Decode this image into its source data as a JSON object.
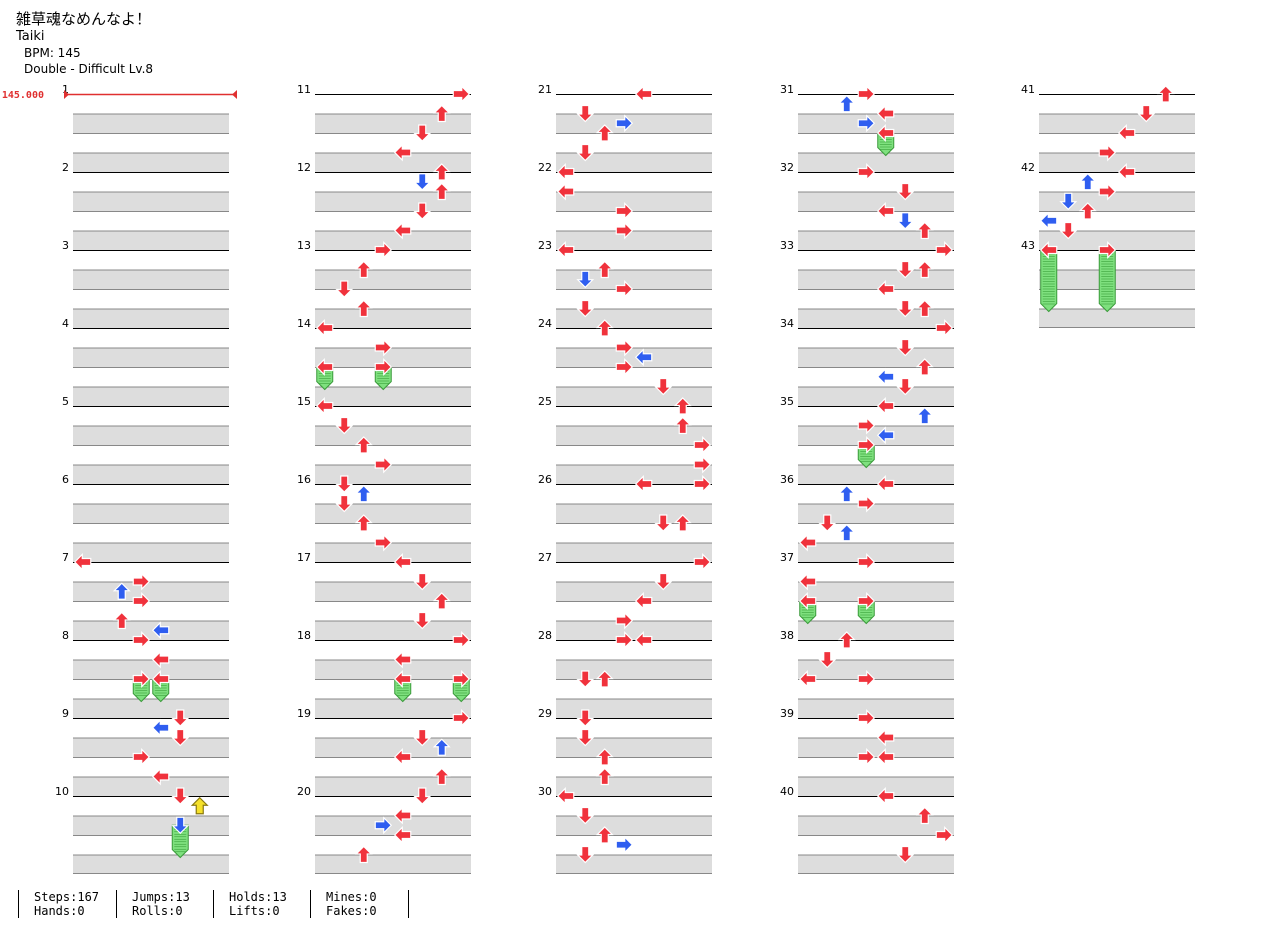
{
  "song": {
    "title": "雑草魂なめんなよ！",
    "artist": "Taiki",
    "bpm_line": "BPM: 145",
    "mode_line": "Double - Difficult  Lv.8"
  },
  "bpm_marker": "145.000",
  "columns": [
    {
      "first_measure": 1,
      "measures": [
        "1",
        "2",
        "3",
        "4",
        "5",
        "6",
        "7",
        "8",
        "9",
        "10"
      ]
    },
    {
      "first_measure": 11,
      "measures": [
        "11",
        "12",
        "13",
        "14",
        "15",
        "16",
        "17",
        "18",
        "19",
        "20"
      ]
    },
    {
      "first_measure": 21,
      "measures": [
        "21",
        "22",
        "23",
        "24",
        "25",
        "26",
        "27",
        "28",
        "29",
        "30"
      ]
    },
    {
      "first_measure": 31,
      "measures": [
        "31",
        "32",
        "33",
        "34",
        "35",
        "36",
        "37",
        "38",
        "39",
        "40"
      ]
    },
    {
      "first_measure": 41,
      "measures": [
        "41",
        "42",
        "43"
      ]
    }
  ],
  "notes": [
    {
      "m": 7,
      "b": 0,
      "l": 0,
      "c": "red"
    },
    {
      "m": 7,
      "b": 1,
      "l": 3,
      "c": "red"
    },
    {
      "m": 7,
      "b": 1.5,
      "l": 2,
      "c": "blue"
    },
    {
      "m": 7,
      "b": 2,
      "l": 3,
      "c": "red"
    },
    {
      "m": 7,
      "b": 3,
      "l": 2,
      "c": "red"
    },
    {
      "m": 7,
      "b": 3.5,
      "l": 4,
      "c": "blue"
    },
    {
      "m": 8,
      "b": 0,
      "l": 3,
      "c": "red"
    },
    {
      "m": 8,
      "b": 1,
      "l": 4,
      "c": "red"
    },
    {
      "m": 8,
      "b": 2,
      "l": 3,
      "c": "red",
      "hold": 1
    },
    {
      "m": 8,
      "b": 2,
      "l": 4,
      "c": "red",
      "hold": 1
    },
    {
      "m": 9,
      "b": 0,
      "l": 5,
      "c": "red"
    },
    {
      "m": 9,
      "b": 0.5,
      "l": 4,
      "c": "blue"
    },
    {
      "m": 9,
      "b": 1,
      "l": 5,
      "c": "red"
    },
    {
      "m": 9,
      "b": 2,
      "l": 3,
      "c": "red"
    },
    {
      "m": 9,
      "b": 3,
      "l": 4,
      "c": "red"
    },
    {
      "m": 10,
      "b": 0,
      "l": 5,
      "c": "red"
    },
    {
      "m": 10,
      "b": 0.5,
      "l": 6,
      "c": "yellow"
    },
    {
      "m": 10,
      "b": 1.5,
      "l": 5,
      "c": "blue",
      "hold": 1.5
    },
    {
      "m": 11,
      "b": 0,
      "l": 7,
      "c": "red"
    },
    {
      "m": 11,
      "b": 1,
      "l": 6,
      "c": "red"
    },
    {
      "m": 11,
      "b": 2,
      "l": 5,
      "c": "red"
    },
    {
      "m": 11,
      "b": 3,
      "l": 4,
      "c": "red"
    },
    {
      "m": 12,
      "b": 0,
      "l": 6,
      "c": "red"
    },
    {
      "m": 12,
      "b": 0.5,
      "l": 5,
      "c": "blue"
    },
    {
      "m": 12,
      "b": 1,
      "l": 6,
      "c": "red"
    },
    {
      "m": 12,
      "b": 2,
      "l": 5,
      "c": "red"
    },
    {
      "m": 12,
      "b": 3,
      "l": 4,
      "c": "red"
    },
    {
      "m": 13,
      "b": 0,
      "l": 3,
      "c": "red"
    },
    {
      "m": 13,
      "b": 1,
      "l": 2,
      "c": "red"
    },
    {
      "m": 13,
      "b": 2,
      "l": 1,
      "c": "red"
    },
    {
      "m": 13,
      "b": 3,
      "l": 2,
      "c": "red"
    },
    {
      "m": 14,
      "b": 0,
      "l": 0,
      "c": "red"
    },
    {
      "m": 14,
      "b": 1,
      "l": 3,
      "c": "red"
    },
    {
      "m": 14,
      "b": 2,
      "l": 0,
      "c": "red",
      "hold": 1
    },
    {
      "m": 14,
      "b": 2,
      "l": 3,
      "c": "red",
      "hold": 1
    },
    {
      "m": 15,
      "b": 0,
      "l": 0,
      "c": "red"
    },
    {
      "m": 15,
      "b": 1,
      "l": 1,
      "c": "red"
    },
    {
      "m": 15,
      "b": 2,
      "l": 2,
      "c": "red"
    },
    {
      "m": 15,
      "b": 3,
      "l": 3,
      "c": "red"
    },
    {
      "m": 16,
      "b": 0,
      "l": 1,
      "c": "red"
    },
    {
      "m": 16,
      "b": 0.5,
      "l": 2,
      "c": "blue"
    },
    {
      "m": 16,
      "b": 1,
      "l": 1,
      "c": "red"
    },
    {
      "m": 16,
      "b": 2,
      "l": 2,
      "c": "red"
    },
    {
      "m": 16,
      "b": 3,
      "l": 3,
      "c": "red"
    },
    {
      "m": 17,
      "b": 0,
      "l": 4,
      "c": "red"
    },
    {
      "m": 17,
      "b": 1,
      "l": 5,
      "c": "red"
    },
    {
      "m": 17,
      "b": 2,
      "l": 6,
      "c": "red"
    },
    {
      "m": 17,
      "b": 3,
      "l": 5,
      "c": "red"
    },
    {
      "m": 18,
      "b": 0,
      "l": 7,
      "c": "red"
    },
    {
      "m": 18,
      "b": 1,
      "l": 4,
      "c": "red"
    },
    {
      "m": 18,
      "b": 2,
      "l": 4,
      "c": "red",
      "hold": 1
    },
    {
      "m": 18,
      "b": 2,
      "l": 7,
      "c": "red",
      "hold": 1
    },
    {
      "m": 19,
      "b": 0,
      "l": 7,
      "c": "red"
    },
    {
      "m": 19,
      "b": 1,
      "l": 5,
      "c": "red"
    },
    {
      "m": 19,
      "b": 1.5,
      "l": 6,
      "c": "blue"
    },
    {
      "m": 19,
      "b": 2,
      "l": 4,
      "c": "red"
    },
    {
      "m": 19,
      "b": 3,
      "l": 6,
      "c": "red"
    },
    {
      "m": 20,
      "b": 0,
      "l": 5,
      "c": "red"
    },
    {
      "m": 20,
      "b": 1,
      "l": 4,
      "c": "red"
    },
    {
      "m": 20,
      "b": 1.5,
      "l": 3,
      "c": "blue"
    },
    {
      "m": 20,
      "b": 2,
      "l": 4,
      "c": "red"
    },
    {
      "m": 20,
      "b": 3,
      "l": 2,
      "c": "red"
    },
    {
      "m": 21,
      "b": 0,
      "l": 4,
      "c": "red"
    },
    {
      "m": 21,
      "b": 1,
      "l": 1,
      "c": "red"
    },
    {
      "m": 21,
      "b": 1.5,
      "l": 3,
      "c": "blue"
    },
    {
      "m": 21,
      "b": 2,
      "l": 2,
      "c": "red"
    },
    {
      "m": 21,
      "b": 3,
      "l": 1,
      "c": "red"
    },
    {
      "m": 22,
      "b": 0,
      "l": 0,
      "c": "red"
    },
    {
      "m": 22,
      "b": 1,
      "l": 0,
      "c": "red"
    },
    {
      "m": 22,
      "b": 2,
      "l": 3,
      "c": "red"
    },
    {
      "m": 22,
      "b": 3,
      "l": 3,
      "c": "red"
    },
    {
      "m": 23,
      "b": 0,
      "l": 0,
      "c": "red"
    },
    {
      "m": 23,
      "b": 1,
      "l": 2,
      "c": "red"
    },
    {
      "m": 23,
      "b": 1.5,
      "l": 1,
      "c": "blue"
    },
    {
      "m": 23,
      "b": 2,
      "l": 3,
      "c": "red"
    },
    {
      "m": 23,
      "b": 3,
      "l": 1,
      "c": "red"
    },
    {
      "m": 24,
      "b": 0,
      "l": 2,
      "c": "red"
    },
    {
      "m": 24,
      "b": 1,
      "l": 3,
      "c": "red"
    },
    {
      "m": 24,
      "b": 1.5,
      "l": 4,
      "c": "blue"
    },
    {
      "m": 24,
      "b": 2,
      "l": 3,
      "c": "red"
    },
    {
      "m": 24,
      "b": 3,
      "l": 5,
      "c": "red"
    },
    {
      "m": 25,
      "b": 0,
      "l": 6,
      "c": "red"
    },
    {
      "m": 25,
      "b": 1,
      "l": 6,
      "c": "red"
    },
    {
      "m": 25,
      "b": 2,
      "l": 7,
      "c": "red"
    },
    {
      "m": 25,
      "b": 3,
      "l": 7,
      "c": "red"
    },
    {
      "m": 26,
      "b": 0,
      "l": 4,
      "c": "red"
    },
    {
      "m": 26,
      "b": 0,
      "l": 7,
      "c": "red"
    },
    {
      "m": 26,
      "b": 2,
      "l": 5,
      "c": "red"
    },
    {
      "m": 26,
      "b": 2,
      "l": 6,
      "c": "red"
    },
    {
      "m": 27,
      "b": 0,
      "l": 7,
      "c": "red"
    },
    {
      "m": 27,
      "b": 1,
      "l": 5,
      "c": "red"
    },
    {
      "m": 27,
      "b": 2,
      "l": 4,
      "c": "red"
    },
    {
      "m": 27,
      "b": 3,
      "l": 3,
      "c": "red"
    },
    {
      "m": 28,
      "b": 0,
      "l": 3,
      "c": "red"
    },
    {
      "m": 28,
      "b": 0,
      "l": 4,
      "c": "red"
    },
    {
      "m": 28,
      "b": 2,
      "l": 1,
      "c": "red"
    },
    {
      "m": 28,
      "b": 2,
      "l": 2,
      "c": "red"
    },
    {
      "m": 29,
      "b": 0,
      "l": 1,
      "c": "red"
    },
    {
      "m": 29,
      "b": 1,
      "l": 1,
      "c": "red"
    },
    {
      "m": 29,
      "b": 2,
      "l": 2,
      "c": "red"
    },
    {
      "m": 29,
      "b": 3,
      "l": 2,
      "c": "red"
    },
    {
      "m": 30,
      "b": 0,
      "l": 0,
      "c": "red"
    },
    {
      "m": 30,
      "b": 1,
      "l": 1,
      "c": "red"
    },
    {
      "m": 30,
      "b": 2,
      "l": 2,
      "c": "red"
    },
    {
      "m": 30,
      "b": 2.5,
      "l": 3,
      "c": "blue"
    },
    {
      "m": 30,
      "b": 3,
      "l": 1,
      "c": "red"
    },
    {
      "m": 31,
      "b": 0,
      "l": 3,
      "c": "red"
    },
    {
      "m": 31,
      "b": 0.5,
      "l": 2,
      "c": "blue"
    },
    {
      "m": 31,
      "b": 1,
      "l": 4,
      "c": "red"
    },
    {
      "m": 31,
      "b": 1.5,
      "l": 3,
      "c": "blue"
    },
    {
      "m": 31,
      "b": 2,
      "l": 4,
      "c": "red",
      "hold": 1
    },
    {
      "m": 32,
      "b": 0,
      "l": 3,
      "c": "red"
    },
    {
      "m": 32,
      "b": 1,
      "l": 5,
      "c": "red"
    },
    {
      "m": 32,
      "b": 2,
      "l": 4,
      "c": "red"
    },
    {
      "m": 32,
      "b": 2.5,
      "l": 5,
      "c": "blue"
    },
    {
      "m": 32,
      "b": 3,
      "l": 6,
      "c": "red"
    },
    {
      "m": 33,
      "b": 0,
      "l": 7,
      "c": "red"
    },
    {
      "m": 33,
      "b": 1,
      "l": 5,
      "c": "red"
    },
    {
      "m": 33,
      "b": 1,
      "l": 6,
      "c": "red"
    },
    {
      "m": 33,
      "b": 2,
      "l": 4,
      "c": "red"
    },
    {
      "m": 33,
      "b": 3,
      "l": 5,
      "c": "red"
    },
    {
      "m": 33,
      "b": 3,
      "l": 6,
      "c": "red"
    },
    {
      "m": 34,
      "b": 0,
      "l": 7,
      "c": "red"
    },
    {
      "m": 34,
      "b": 1,
      "l": 5,
      "c": "red"
    },
    {
      "m": 34,
      "b": 2,
      "l": 6,
      "c": "red"
    },
    {
      "m": 34,
      "b": 2.5,
      "l": 4,
      "c": "blue"
    },
    {
      "m": 34,
      "b": 3,
      "l": 5,
      "c": "red"
    },
    {
      "m": 35,
      "b": 0,
      "l": 4,
      "c": "red"
    },
    {
      "m": 35,
      "b": 0.5,
      "l": 6,
      "c": "blue"
    },
    {
      "m": 35,
      "b": 1,
      "l": 3,
      "c": "red"
    },
    {
      "m": 35,
      "b": 1.5,
      "l": 4,
      "c": "blue"
    },
    {
      "m": 35,
      "b": 2,
      "l": 3,
      "c": "red",
      "hold": 1
    },
    {
      "m": 36,
      "b": 0,
      "l": 4,
      "c": "red"
    },
    {
      "m": 36,
      "b": 0.5,
      "l": 2,
      "c": "blue"
    },
    {
      "m": 36,
      "b": 1,
      "l": 3,
      "c": "red"
    },
    {
      "m": 36,
      "b": 2,
      "l": 1,
      "c": "red"
    },
    {
      "m": 36,
      "b": 2.5,
      "l": 2,
      "c": "blue"
    },
    {
      "m": 36,
      "b": 3,
      "l": 0,
      "c": "red"
    },
    {
      "m": 37,
      "b": 0,
      "l": 3,
      "c": "red"
    },
    {
      "m": 37,
      "b": 1,
      "l": 0,
      "c": "red"
    },
    {
      "m": 37,
      "b": 2,
      "l": 0,
      "c": "red",
      "hold": 1
    },
    {
      "m": 37,
      "b": 2,
      "l": 3,
      "c": "red",
      "hold": 1
    },
    {
      "m": 38,
      "b": 0,
      "l": 2,
      "c": "red"
    },
    {
      "m": 38,
      "b": 1,
      "l": 1,
      "c": "red"
    },
    {
      "m": 38,
      "b": 2,
      "l": 0,
      "c": "red"
    },
    {
      "m": 38,
      "b": 2,
      "l": 3,
      "c": "red"
    },
    {
      "m": 39,
      "b": 0,
      "l": 3,
      "c": "red"
    },
    {
      "m": 39,
      "b": 1,
      "l": 4,
      "c": "red"
    },
    {
      "m": 39,
      "b": 2,
      "l": 3,
      "c": "red"
    },
    {
      "m": 39,
      "b": 2,
      "l": 4,
      "c": "red"
    },
    {
      "m": 40,
      "b": 0,
      "l": 4,
      "c": "red"
    },
    {
      "m": 40,
      "b": 1,
      "l": 6,
      "c": "red"
    },
    {
      "m": 40,
      "b": 2,
      "l": 7,
      "c": "red"
    },
    {
      "m": 40,
      "b": 3,
      "l": 5,
      "c": "red"
    },
    {
      "m": 41,
      "b": 0,
      "l": 6,
      "c": "red"
    },
    {
      "m": 41,
      "b": 1,
      "l": 5,
      "c": "red"
    },
    {
      "m": 41,
      "b": 2,
      "l": 4,
      "c": "red"
    },
    {
      "m": 41,
      "b": 3,
      "l": 3,
      "c": "red"
    },
    {
      "m": 42,
      "b": 0,
      "l": 4,
      "c": "red"
    },
    {
      "m": 42,
      "b": 0.5,
      "l": 2,
      "c": "blue"
    },
    {
      "m": 42,
      "b": 1,
      "l": 3,
      "c": "red"
    },
    {
      "m": 42,
      "b": 1.5,
      "l": 1,
      "c": "blue"
    },
    {
      "m": 42,
      "b": 2,
      "l": 2,
      "c": "red"
    },
    {
      "m": 42,
      "b": 2.5,
      "l": 0,
      "c": "blue"
    },
    {
      "m": 42,
      "b": 3,
      "l": 1,
      "c": "red"
    },
    {
      "m": 43,
      "b": 0,
      "l": 0,
      "c": "red",
      "hold": 3
    },
    {
      "m": 43,
      "b": 0,
      "l": 3,
      "c": "red",
      "hold": 3
    }
  ],
  "stats": {
    "steps": "Steps:167",
    "hands": "Hands:0",
    "jumps": "Jumps:13",
    "rolls": "Rolls:0",
    "holds": "Holds:13",
    "lifts": "Lifts:0",
    "mines": "Mines:0",
    "fakes": "Fakes:0"
  },
  "colors": {
    "red": "#f0323c",
    "blue": "#2f5ef0",
    "yellow": "#f5e12a",
    "hold": "#7ee07e",
    "band": "#dddddd",
    "bpm": "#e03030"
  },
  "icons": {
    "note": "arrow-note-icon",
    "hold": "hold-tail-icon"
  }
}
